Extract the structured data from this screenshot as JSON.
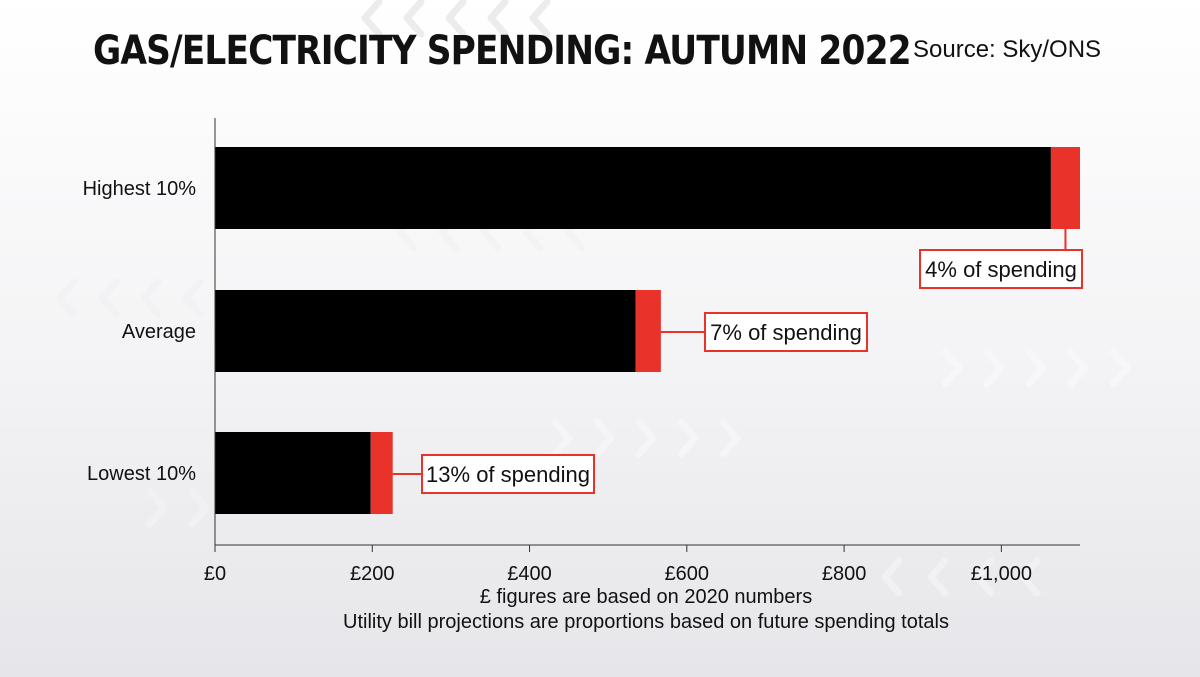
{
  "title": "GAS/ELECTRICITY SPENDING: AUTUMN 2022",
  "source": "Source: Sky/ONS",
  "notes": [
    "£ figures are based on 2020 numbers",
    "Utility bill projections are proportions based on future spending totals"
  ],
  "colors": {
    "spending": "#000000",
    "utility": "#e8322a",
    "callout_border": "#e8322a"
  },
  "chart_data": {
    "type": "bar",
    "orientation": "horizontal",
    "stacked": true,
    "categories": [
      "Highest 10%",
      "Average",
      "Lowest 10%"
    ],
    "series": [
      {
        "values": [
          1063,
          535,
          198
        ]
      },
      {
        "values": [
          37,
          32,
          28
        ]
      }
    ],
    "annotations": [
      "4% of spending",
      "7% of spending",
      "13% of spending"
    ],
    "xticks": [
      "£0",
      "£200",
      "£400",
      "£600",
      "£800",
      "£1,000"
    ],
    "xtick_values": [
      0,
      200,
      400,
      600,
      800,
      1000
    ],
    "xlim": [
      0,
      1100
    ],
    "grid": false
  }
}
